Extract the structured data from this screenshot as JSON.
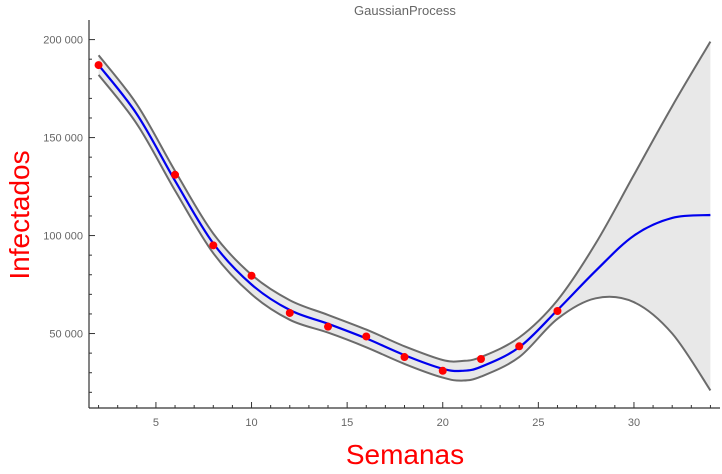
{
  "chart_data": {
    "type": "line",
    "title": "GaussianProcess",
    "xlabel": "Semanas",
    "ylabel": "Infectados",
    "xlim": [
      1.5,
      34.5
    ],
    "ylim": [
      12000,
      210000
    ],
    "x_ticks": [
      {
        "value": 5,
        "label": "5"
      },
      {
        "value": 10,
        "label": "10"
      },
      {
        "value": 15,
        "label": "15"
      },
      {
        "value": 20,
        "label": "20"
      },
      {
        "value": 25,
        "label": "25"
      },
      {
        "value": 30,
        "label": "30"
      }
    ],
    "y_ticks": [
      {
        "value": 50000,
        "label": "50 000"
      },
      {
        "value": 100000,
        "label": "100 000"
      },
      {
        "value": 150000,
        "label": "150 000"
      },
      {
        "value": 200000,
        "label": "200 000"
      }
    ],
    "observations": {
      "x": [
        2,
        6,
        8,
        10,
        12,
        14,
        16,
        18,
        20,
        22,
        24,
        26
      ],
      "y": [
        187000,
        131000,
        95000,
        79500,
        60500,
        53500,
        48500,
        38000,
        31000,
        37000,
        43500,
        61500
      ]
    },
    "series": [
      {
        "role": "mean",
        "x": [
          2,
          4,
          6,
          8,
          10,
          12,
          14,
          16,
          18,
          20,
          21,
          22,
          24,
          26,
          28,
          30,
          32,
          34
        ],
        "y": [
          187000,
          162000,
          128000,
          96000,
          75000,
          62000,
          55000,
          47500,
          39000,
          32000,
          31000,
          33000,
          43000,
          62000,
          82000,
          100000,
          109000,
          110500
        ]
      },
      {
        "role": "upper-bound",
        "x": [
          2,
          4,
          6,
          8,
          10,
          12,
          14,
          16,
          18,
          20,
          21,
          22,
          24,
          26,
          28,
          30,
          32,
          34
        ],
        "y": [
          192000,
          167000,
          133000,
          101000,
          80000,
          67000,
          59500,
          52000,
          43500,
          36500,
          36000,
          38000,
          48000,
          67000,
          96000,
          131000,
          166000,
          199000
        ]
      },
      {
        "role": "lower-bound",
        "x": [
          2,
          4,
          6,
          8,
          10,
          12,
          14,
          16,
          18,
          20,
          21,
          22,
          24,
          26,
          28,
          30,
          32,
          34
        ],
        "y": [
          182000,
          157000,
          123000,
          91000,
          70000,
          57000,
          50500,
          43000,
          34500,
          27500,
          26000,
          28000,
          38000,
          57500,
          68000,
          66000,
          50000,
          21000
        ]
      }
    ],
    "grid": false,
    "legend": "none",
    "colors": {
      "mean": "#0000ee",
      "bounds": "#6b6b6b",
      "band_fill": "#e8e8e8",
      "points": "#ff0000",
      "axes": "#333333",
      "axis_title": "#ff0000",
      "tick_text": "#666666"
    }
  }
}
